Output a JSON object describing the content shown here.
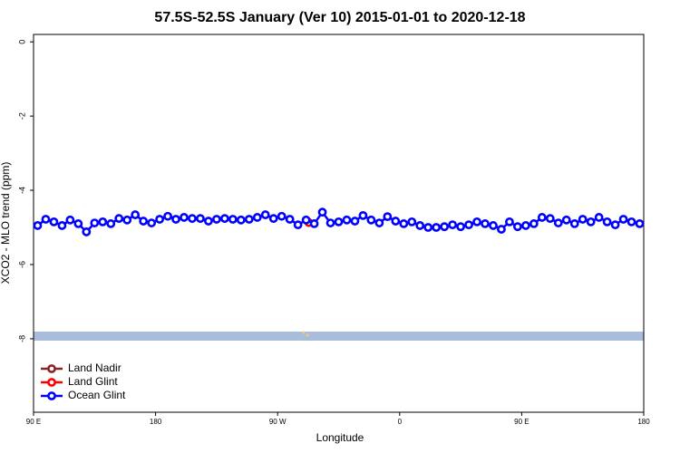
{
  "chart_data": {
    "type": "line",
    "title": "57.5S-52.5S January (Ver 10)   2015-01-01 to 2020-12-18",
    "x_label": "Longitude",
    "y_label": "XCO2 - MLO trend (ppm)",
    "xlim": [
      90,
      540
    ],
    "ylim": [
      -9.98,
      0.2
    ],
    "xticks": [
      {
        "value": 90,
        "label": "90 E"
      },
      180,
      {
        "value": 270,
        "label": "90 W"
      },
      {
        "value": 360,
        "label": "0"
      },
      {
        "value": 450,
        "label": "90 E"
      },
      {
        "value": 540,
        "label": "180"
      }
    ],
    "yticks": [
      0,
      -2,
      -4,
      -6,
      -8
    ],
    "legend": "bottomleft",
    "series": [
      {
        "name": "Land Nadir",
        "color": "#8b2323",
        "x": [],
        "values": []
      },
      {
        "name": "Land Glint",
        "color": "#ff0000",
        "x": [
          293
        ],
        "values": [
          -4.87
        ]
      },
      {
        "name": "Ocean Glint",
        "color": "#0000ff",
        "x": [
          93,
          99,
          105,
          111,
          117,
          123,
          129,
          135,
          141,
          147,
          153,
          159,
          165,
          171,
          177,
          183,
          189,
          195,
          201,
          207,
          213,
          219,
          225,
          231,
          237,
          243,
          249,
          255,
          261,
          267,
          273,
          279,
          285,
          291,
          297,
          303,
          309,
          315,
          321,
          327,
          333,
          339,
          345,
          351,
          357,
          363,
          369,
          375,
          381,
          387,
          393,
          399,
          405,
          411,
          417,
          423,
          429,
          435,
          441,
          447,
          453,
          459,
          465,
          471,
          477,
          483,
          489,
          495,
          501,
          507,
          513,
          519,
          525,
          531,
          537
        ],
        "values": [
          -4.95,
          -4.78,
          -4.85,
          -4.95,
          -4.8,
          -4.9,
          -5.12,
          -4.88,
          -4.85,
          -4.9,
          -4.76,
          -4.8,
          -4.66,
          -4.83,
          -4.88,
          -4.78,
          -4.7,
          -4.78,
          -4.73,
          -4.76,
          -4.76,
          -4.83,
          -4.78,
          -4.76,
          -4.78,
          -4.8,
          -4.78,
          -4.73,
          -4.66,
          -4.76,
          -4.7,
          -4.78,
          -4.93,
          -4.8,
          -4.9,
          -4.59,
          -4.88,
          -4.85,
          -4.8,
          -4.83,
          -4.68,
          -4.8,
          -4.88,
          -4.71,
          -4.83,
          -4.9,
          -4.85,
          -4.95,
          -5.0,
          -5.0,
          -4.98,
          -4.93,
          -4.98,
          -4.93,
          -4.85,
          -4.9,
          -4.95,
          -5.05,
          -4.85,
          -4.98,
          -4.95,
          -4.9,
          -4.73,
          -4.76,
          -4.88,
          -4.8,
          -4.9,
          -4.78,
          -4.85,
          -4.73,
          -4.85,
          -4.93,
          -4.78,
          -4.85,
          -4.9
        ]
      }
    ]
  }
}
